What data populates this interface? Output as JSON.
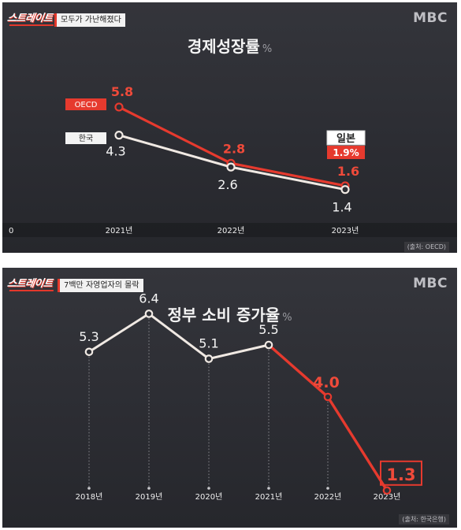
{
  "panel1": {
    "brand": "스트레이트",
    "subtitle": "모두가 가난해졌다",
    "logo": "MBC",
    "source": "(출처: OECD)",
    "chart_data": {
      "type": "line",
      "title": "경제성장률",
      "unit": "%",
      "categories": [
        "2021년",
        "2022년",
        "2023년"
      ],
      "baseline_label": "0",
      "series": [
        {
          "name": "OECD",
          "values": [
            5.8,
            2.8,
            1.6
          ],
          "labels": [
            "5.8",
            "2.8",
            "1.6"
          ],
          "color": "#e63a2e"
        },
        {
          "name": "한국",
          "values": [
            4.3,
            2.6,
            1.4
          ],
          "labels": [
            "4.3",
            "2.6",
            "1.4"
          ],
          "color": "#f0e9e3"
        }
      ],
      "annotation": {
        "label": "일본",
        "value": "1.9%"
      }
    }
  },
  "panel2": {
    "brand": "스트레이트",
    "subtitle": "7백만 자영업자의 몰락",
    "logo": "MBC",
    "source": "(출처: 한국은행)",
    "chart_data": {
      "type": "line",
      "title": "정부 소비 증가율",
      "unit": "%",
      "categories": [
        "2018년",
        "2019년",
        "2020년",
        "2021년",
        "2022년",
        "2023년"
      ],
      "series": [
        {
          "values": [
            5.3,
            6.4,
            5.1,
            5.5,
            4.0,
            1.3
          ],
          "labels": [
            "5.3",
            "6.4",
            "5.1",
            "5.5",
            "4.0",
            "1.3"
          ]
        }
      ],
      "highlight_from_index": 4,
      "colors": {
        "normal": "#f0e9e3",
        "highlight": "#e63a2e"
      }
    }
  }
}
